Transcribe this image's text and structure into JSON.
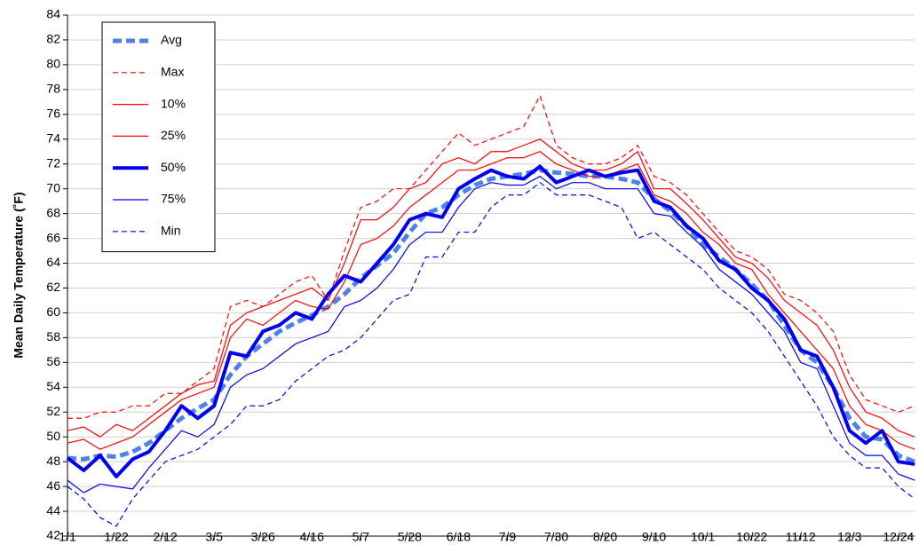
{
  "chart_data": {
    "type": "line",
    "y_label": "Mean Daily Temperature (˚F)",
    "categories": [
      "1/1",
      null,
      null,
      "1/22",
      null,
      null,
      "2/12",
      null,
      null,
      "3/5",
      null,
      null,
      "3/26",
      null,
      null,
      "4/16",
      null,
      null,
      "5/7",
      null,
      null,
      "5/28",
      null,
      null,
      "6/18",
      null,
      null,
      "7/9",
      null,
      null,
      "7/30",
      null,
      null,
      "8/20",
      null,
      null,
      "9/10",
      null,
      null,
      "10/1",
      null,
      null,
      "10/22",
      null,
      null,
      "11/12",
      null,
      null,
      "12/3",
      null,
      null,
      "12/24",
      null
    ],
    "ylim": [
      42,
      84
    ],
    "yticks": [
      42,
      44,
      46,
      48,
      50,
      52,
      54,
      56,
      58,
      60,
      62,
      64,
      66,
      68,
      70,
      72,
      74,
      76,
      78,
      80,
      82,
      84
    ],
    "grid": true,
    "legend": "upper left",
    "series": [
      {
        "name": "Avg",
        "color": "#4f81e8",
        "linestyle": "dashed",
        "linewidth": "thick",
        "values": [
          48.3,
          48.2,
          48.5,
          48.4,
          48.8,
          49.5,
          50.5,
          51.5,
          52.3,
          53,
          55,
          56.5,
          57.5,
          58.5,
          59.2,
          59.8,
          60.5,
          61.5,
          62.8,
          63.8,
          64.8,
          66.5,
          68,
          68.5,
          69.5,
          70.3,
          70.8,
          71,
          71.2,
          71.5,
          71.3,
          71.2,
          71,
          71,
          70.8,
          70.5,
          69.2,
          68.2,
          67,
          65.5,
          64.5,
          63.5,
          62.3,
          61,
          59,
          57,
          56,
          54,
          51.5,
          50,
          49.8,
          48.5,
          48
        ]
      },
      {
        "name": "Max",
        "color": "#ff0000",
        "linestyle": "dashed",
        "linewidth": "thin",
        "values": [
          51.5,
          51.5,
          52,
          52,
          52.5,
          52.5,
          53.5,
          53.5,
          54.5,
          55.5,
          60.5,
          61,
          60.5,
          61.5,
          62.5,
          63,
          61,
          65,
          68.5,
          69,
          70,
          70,
          71.5,
          73,
          74.5,
          73.5,
          74,
          74.5,
          75,
          77.5,
          73.5,
          72.5,
          72,
          72,
          72.5,
          73.5,
          71,
          70.5,
          69.5,
          68,
          66.5,
          65,
          64.5,
          63.5,
          61.5,
          61,
          60,
          58.5,
          55,
          53,
          52.5,
          52,
          52.5
        ]
      },
      {
        "name": "10%",
        "color": "#ff0000",
        "linestyle": "solid",
        "linewidth": "thin",
        "values": [
          50.5,
          50.8,
          50,
          51,
          50.5,
          51.5,
          52.5,
          53.5,
          54.2,
          54.5,
          59,
          60,
          60.5,
          61,
          61.5,
          62,
          61,
          64,
          67.5,
          67.5,
          68.5,
          70,
          70.5,
          72,
          72.5,
          72,
          73,
          73,
          73.5,
          74,
          73,
          72,
          71.5,
          71.5,
          72,
          73,
          70,
          70,
          68.8,
          67.5,
          66,
          64.5,
          64,
          62.8,
          61,
          60,
          59,
          57,
          54,
          52,
          51.5,
          50.5,
          50
        ]
      },
      {
        "name": "25%",
        "color": "#ff0000",
        "linestyle": "solid",
        "linewidth": "thin",
        "values": [
          49.5,
          49.8,
          49,
          49.5,
          50,
          51,
          52,
          53,
          53.5,
          54,
          58,
          59.5,
          59,
          60,
          61,
          60.5,
          60.3,
          62.5,
          65.5,
          66,
          67,
          68.5,
          69.5,
          70.5,
          71.5,
          71.5,
          72,
          72.5,
          72.5,
          73,
          72,
          71.5,
          71,
          71,
          71.5,
          72,
          69.5,
          69,
          68,
          66.5,
          65.5,
          64,
          63.5,
          61.5,
          60,
          58.5,
          57,
          55.5,
          52.5,
          51,
          50.5,
          49.5,
          49
        ]
      },
      {
        "name": "50%",
        "color": "#0000ee",
        "linestyle": "solid",
        "linewidth": "thick",
        "values": [
          48.3,
          47.3,
          48.5,
          46.8,
          48.2,
          48.8,
          50.5,
          52.5,
          51.5,
          52.5,
          56.8,
          56.5,
          58.5,
          59,
          60,
          59.5,
          61.5,
          63,
          62.5,
          64,
          65.5,
          67.5,
          68,
          67.7,
          70,
          70.8,
          71.5,
          71,
          70.8,
          71.8,
          70.5,
          71,
          71.5,
          71,
          71.3,
          71.5,
          69,
          68.5,
          67,
          66,
          64.2,
          63.5,
          62,
          61,
          59.5,
          57,
          56.5,
          54,
          50.5,
          49.5,
          50.5,
          48,
          47.8
        ]
      },
      {
        "name": "75%",
        "color": "#0000ee",
        "linestyle": "solid",
        "linewidth": "thin",
        "values": [
          46.5,
          45.5,
          46.2,
          46,
          45.8,
          47.5,
          49,
          50.5,
          50,
          51,
          54,
          55,
          55.5,
          56.5,
          57.5,
          58,
          58.5,
          60.5,
          61,
          62,
          63.5,
          65.5,
          66.5,
          66.5,
          68.5,
          70,
          70.5,
          70.3,
          70.3,
          71,
          70,
          70.5,
          70.5,
          70,
          70,
          70,
          68,
          67.8,
          66.5,
          65.3,
          63.5,
          62.5,
          61.5,
          60,
          58.5,
          56,
          55.5,
          52.5,
          49.5,
          48.5,
          48.5,
          47,
          46.5
        ]
      },
      {
        "name": "Min",
        "color": "#0000ee",
        "linestyle": "dashed",
        "linewidth": "thin",
        "values": [
          46,
          45,
          43.5,
          42.8,
          45,
          46.5,
          48,
          48.5,
          49,
          50,
          51,
          52.5,
          52.5,
          53,
          54.5,
          55.5,
          56.5,
          57,
          58,
          59.5,
          61,
          61.5,
          64.5,
          64.5,
          66.5,
          66.5,
          68.5,
          69.5,
          69.5,
          70.5,
          69.5,
          69.5,
          69.5,
          69,
          68.5,
          66,
          66.5,
          65.5,
          64.5,
          63.5,
          62,
          61,
          60,
          58.5,
          56.5,
          54.5,
          52.5,
          50,
          48.5,
          47.5,
          47.5,
          46,
          45
        ]
      }
    ]
  }
}
